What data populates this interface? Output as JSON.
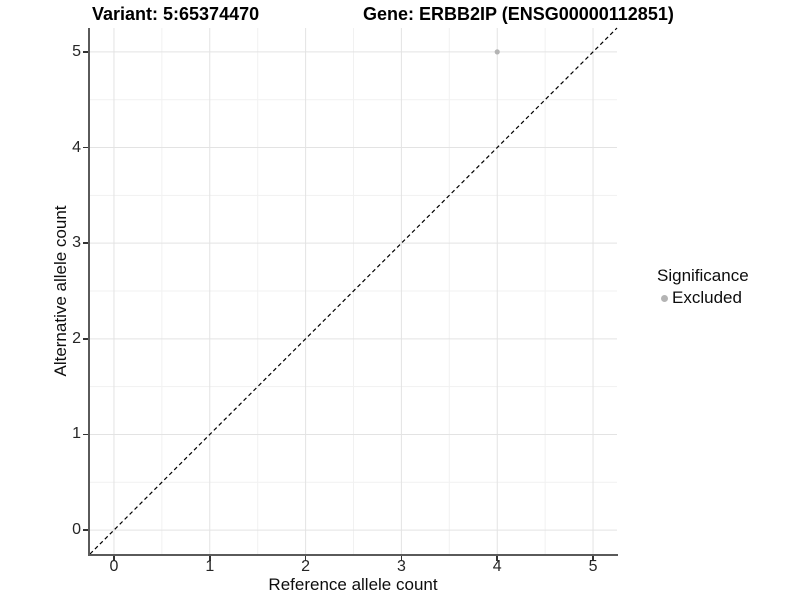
{
  "chart_data": {
    "type": "scatter",
    "title_left": "Variant: 5:65374470",
    "title_right": "Gene: ERBB2IP (ENSG00000112851)",
    "xlabel": "Reference allele count",
    "ylabel": "Alternative allele count",
    "xlim": [
      -0.25,
      5.25
    ],
    "ylim": [
      -0.25,
      5.25
    ],
    "x_ticks": [
      0,
      1,
      2,
      3,
      4,
      5
    ],
    "y_ticks": [
      0,
      1,
      2,
      3,
      4,
      5
    ],
    "grid": "on",
    "identity_line": {
      "style": "dashed",
      "color": "#000000",
      "from": [
        -0.25,
        -0.25
      ],
      "to": [
        5.25,
        5.25
      ]
    },
    "series": [
      {
        "name": "Excluded",
        "color": "#b4b4b4",
        "points": [
          [
            4,
            5
          ]
        ]
      }
    ],
    "legend": {
      "position": "right",
      "title": "Significance",
      "entries": [
        {
          "label": "Excluded",
          "color": "#b4b4b4",
          "marker": "dot"
        }
      ]
    },
    "colors": {
      "grid_major": "#e3e3e3",
      "grid_minor": "#f1f1f1",
      "axis_line": "#5a5a5a",
      "tick_mark": "#333333",
      "point": "#b4b4b4"
    }
  }
}
